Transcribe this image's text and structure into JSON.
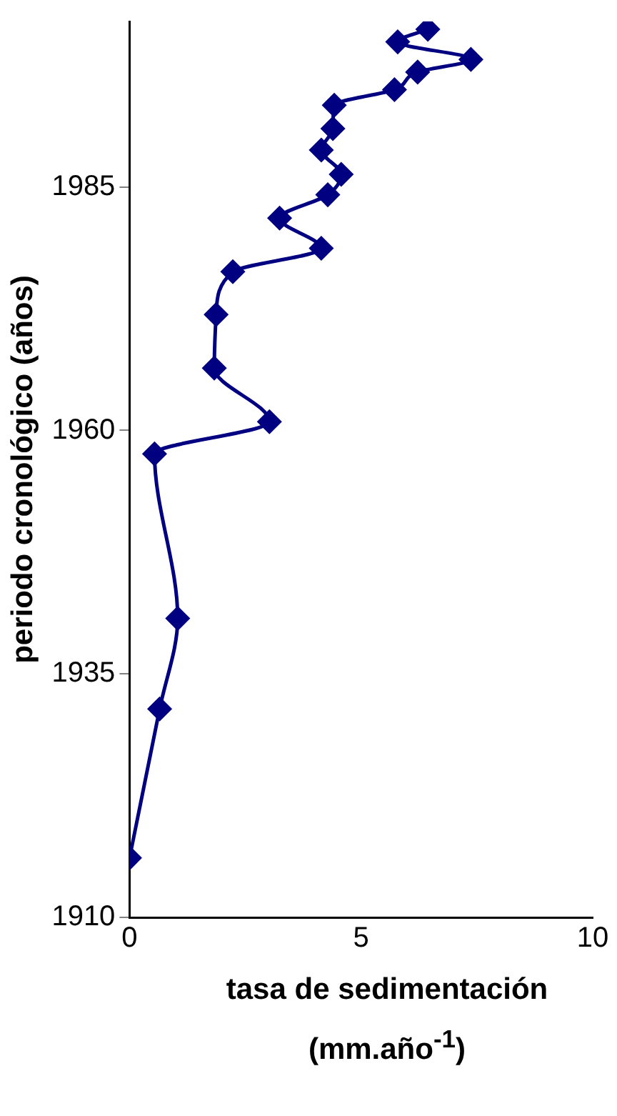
{
  "chart_data": {
    "type": "line",
    "xlabel": "tasa de sedimentación (mm.año$^{-1}$)",
    "ylabel": "periodo cronológico (años)",
    "x": [
      0,
      0.65,
      1.04,
      0.54,
      3.02,
      1.83,
      1.87,
      2.23,
      4.14,
      3.24,
      4.28,
      4.57,
      4.14,
      4.39,
      4.42,
      5.72,
      6.22,
      7.37,
      5.79,
      6.44
    ],
    "values": [
      1916.1,
      1931.4,
      1940.7,
      1957.6,
      1960.9,
      1966.4,
      1971.9,
      1976.3,
      1978.7,
      1981.8,
      1984.2,
      1986.3,
      1988.8,
      1991.0,
      1993.4,
      1995.0,
      1996.8,
      1998.1,
      1999.9,
      2001.2
    ],
    "color": "#000080",
    "marker": "diamond",
    "line_style": "solid",
    "xlim": [
      0,
      10
    ],
    "xticks": [
      0,
      5,
      10
    ],
    "ylim": [
      1910,
      2002
    ],
    "yticks": [
      1910,
      1935,
      1960,
      1985
    ],
    "grid": false,
    "legend": false
  }
}
